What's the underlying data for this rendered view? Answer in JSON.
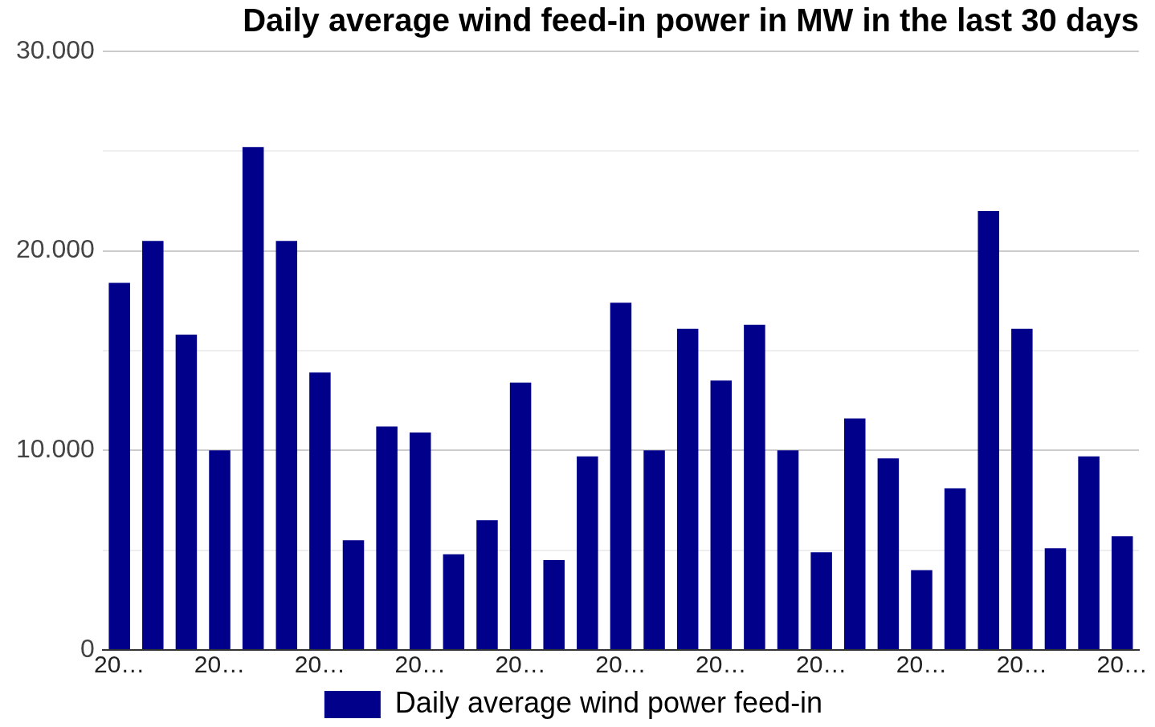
{
  "chart_data": {
    "type": "bar",
    "title": "Daily average wind feed-in power in MW in the last 30 days",
    "categories": [
      "20…",
      null,
      null,
      "20…",
      null,
      null,
      "20…",
      null,
      null,
      "20…",
      null,
      null,
      "20…",
      null,
      null,
      "20…",
      null,
      null,
      "20…",
      null,
      null,
      "20…",
      null,
      null,
      "20…",
      null,
      null,
      "20…",
      null,
      null,
      "20…"
    ],
    "series": [
      {
        "name": "Daily average wind power feed-in",
        "color": "#00008b",
        "values": [
          18400,
          20500,
          15800,
          10000,
          25200,
          20500,
          13900,
          5500,
          11200,
          10900,
          4800,
          6500,
          13400,
          4500,
          9700,
          17400,
          10000,
          16100,
          13500,
          16300,
          10000,
          4900,
          11600,
          9600,
          4000,
          8100,
          22000,
          16100,
          5100,
          9700,
          5700
        ]
      }
    ],
    "ylim": [
      0,
      30000
    ],
    "yticks": [
      0,
      {
        "value": 5000,
        "label": null
      },
      {
        "value": 10000,
        "label": "10.000"
      },
      {
        "value": 15000,
        "label": null
      },
      {
        "value": 20000,
        "label": "20.000"
      },
      {
        "value": 25000,
        "label": null
      },
      {
        "value": 30000,
        "label": "30.000"
      }
    ],
    "grid": "y",
    "legend": "bottom"
  }
}
